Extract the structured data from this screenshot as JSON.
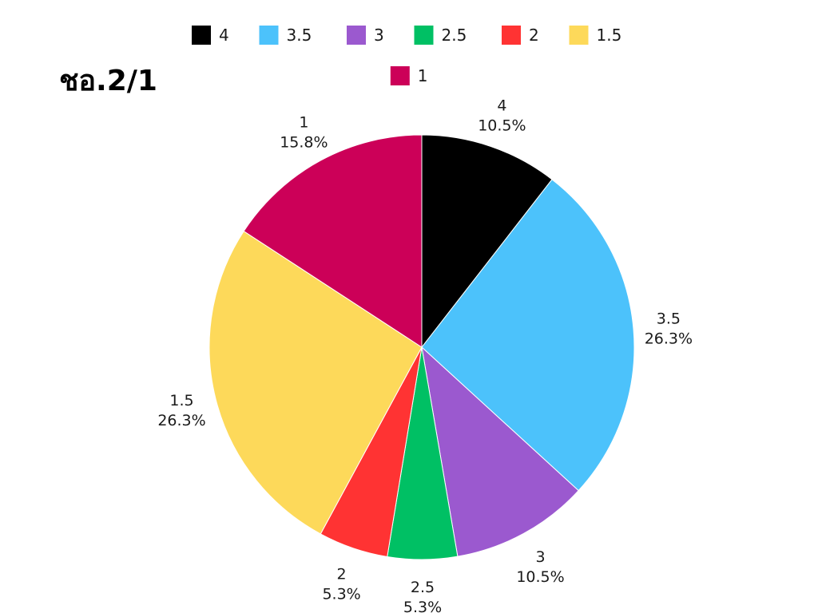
{
  "chart_data": {
    "type": "pie",
    "title": "ชอ.2/1",
    "start_angle_deg": 0,
    "direction": "clockwise",
    "legend_position": "top",
    "slices": [
      {
        "label": "4",
        "percent": 10.5,
        "percent_label": "10.5%",
        "color": "#000000"
      },
      {
        "label": "3.5",
        "percent": 26.3,
        "percent_label": "26.3%",
        "color": "#4cc2fb"
      },
      {
        "label": "3",
        "percent": 10.5,
        "percent_label": "10.5%",
        "color": "#9b59cf"
      },
      {
        "label": "2.5",
        "percent": 5.3,
        "percent_label": "5.3%",
        "color": "#00c064"
      },
      {
        "label": "2",
        "percent": 5.3,
        "percent_label": "5.3%",
        "color": "#ff3333"
      },
      {
        "label": "1.5",
        "percent": 26.3,
        "percent_label": "26.3%",
        "color": "#fdd95a"
      },
      {
        "label": "1",
        "percent": 15.8,
        "percent_label": "15.8%",
        "color": "#cc0058"
      }
    ]
  }
}
